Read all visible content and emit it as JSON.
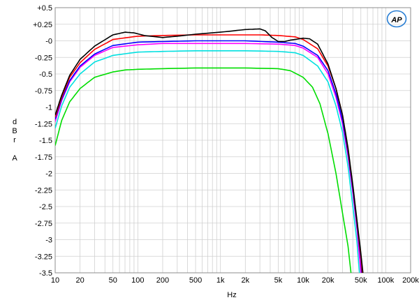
{
  "chart_data": {
    "type": "line",
    "xscale": "log",
    "xlabel": "Hz",
    "ylabel": [
      "d",
      "B",
      "r",
      "",
      "A"
    ],
    "xlim": [
      10,
      200000
    ],
    "ylim": [
      -3.5,
      0.5
    ],
    "grid": true,
    "x_ticks": [
      {
        "v": 10,
        "label": "10"
      },
      {
        "v": 20,
        "label": "20"
      },
      {
        "v": 50,
        "label": "50"
      },
      {
        "v": 100,
        "label": "100"
      },
      {
        "v": 200,
        "label": "200"
      },
      {
        "v": 500,
        "label": "500"
      },
      {
        "v": 1000,
        "label": "1k"
      },
      {
        "v": 2000,
        "label": "2k"
      },
      {
        "v": 5000,
        "label": "5k"
      },
      {
        "v": 10000,
        "label": "10k"
      },
      {
        "v": 20000,
        "label": "20k"
      },
      {
        "v": 50000,
        "label": "50k"
      },
      {
        "v": 100000,
        "label": "100k"
      },
      {
        "v": 200000,
        "label": "200k"
      }
    ],
    "y_ticks": [
      {
        "v": 0.5,
        "label": "+0.5"
      },
      {
        "v": 0.25,
        "label": "+0.25"
      },
      {
        "v": 0,
        "label": "-0"
      },
      {
        "v": -0.25,
        "label": "-0.25"
      },
      {
        "v": -0.5,
        "label": "-0.5"
      },
      {
        "v": -0.75,
        "label": "-0.75"
      },
      {
        "v": -1,
        "label": "-1"
      },
      {
        "v": -1.25,
        "label": "-1.25"
      },
      {
        "v": -1.5,
        "label": "-1.5"
      },
      {
        "v": -1.75,
        "label": "-1.75"
      },
      {
        "v": -2,
        "label": "-2"
      },
      {
        "v": -2.25,
        "label": "-2.25"
      },
      {
        "v": -2.5,
        "label": "-2.5"
      },
      {
        "v": -2.75,
        "label": "-2.75"
      },
      {
        "v": -3,
        "label": "-3"
      },
      {
        "v": -3.25,
        "label": "-3.25"
      },
      {
        "v": -3.5,
        "label": "-3.5"
      }
    ],
    "series": [
      {
        "color": "#00dd00",
        "points": [
          [
            10,
            -1.58
          ],
          [
            12,
            -1.2
          ],
          [
            15,
            -0.92
          ],
          [
            20,
            -0.72
          ],
          [
            30,
            -0.55
          ],
          [
            50,
            -0.47
          ],
          [
            70,
            -0.44
          ],
          [
            100,
            -0.43
          ],
          [
            200,
            -0.42
          ],
          [
            500,
            -0.41
          ],
          [
            1000,
            -0.41
          ],
          [
            2000,
            -0.41
          ],
          [
            5000,
            -0.42
          ],
          [
            7000,
            -0.45
          ],
          [
            10000,
            -0.55
          ],
          [
            13000,
            -0.7
          ],
          [
            16000,
            -0.95
          ],
          [
            20000,
            -1.4
          ],
          [
            25000,
            -2.0
          ],
          [
            30000,
            -2.6
          ],
          [
            35000,
            -3.1
          ],
          [
            38000,
            -3.5
          ]
        ]
      },
      {
        "color": "#00e0e0",
        "points": [
          [
            10,
            -1.32
          ],
          [
            12,
            -0.98
          ],
          [
            15,
            -0.7
          ],
          [
            20,
            -0.5
          ],
          [
            30,
            -0.32
          ],
          [
            50,
            -0.22
          ],
          [
            100,
            -0.17
          ],
          [
            200,
            -0.16
          ],
          [
            500,
            -0.15
          ],
          [
            1000,
            -0.15
          ],
          [
            2000,
            -0.15
          ],
          [
            5000,
            -0.16
          ],
          [
            8000,
            -0.18
          ],
          [
            10000,
            -0.22
          ],
          [
            15000,
            -0.38
          ],
          [
            20000,
            -0.62
          ],
          [
            25000,
            -0.98
          ],
          [
            30000,
            -1.38
          ],
          [
            35000,
            -1.9
          ],
          [
            40000,
            -2.5
          ],
          [
            45000,
            -3.05
          ],
          [
            48000,
            -3.5
          ]
        ]
      },
      {
        "color": "#ff00ff",
        "points": [
          [
            10,
            -1.22
          ],
          [
            12,
            -0.9
          ],
          [
            15,
            -0.62
          ],
          [
            20,
            -0.4
          ],
          [
            30,
            -0.22
          ],
          [
            50,
            -0.1
          ],
          [
            100,
            -0.06
          ],
          [
            200,
            -0.04
          ],
          [
            500,
            -0.04
          ],
          [
            1000,
            -0.04
          ],
          [
            2000,
            -0.04
          ],
          [
            5000,
            -0.05
          ],
          [
            8000,
            -0.07
          ],
          [
            10000,
            -0.11
          ],
          [
            15000,
            -0.25
          ],
          [
            20000,
            -0.5
          ],
          [
            25000,
            -0.85
          ],
          [
            30000,
            -1.25
          ],
          [
            35000,
            -1.75
          ],
          [
            40000,
            -2.3
          ],
          [
            45000,
            -2.85
          ],
          [
            50000,
            -3.5
          ]
        ]
      },
      {
        "color": "#0000ff",
        "points": [
          [
            10,
            -1.18
          ],
          [
            12,
            -0.88
          ],
          [
            15,
            -0.6
          ],
          [
            20,
            -0.38
          ],
          [
            30,
            -0.2
          ],
          [
            50,
            -0.07
          ],
          [
            100,
            -0.02
          ],
          [
            200,
            -0.01
          ],
          [
            500,
            0.0
          ],
          [
            1000,
            0.0
          ],
          [
            2000,
            0.0
          ],
          [
            5000,
            -0.02
          ],
          [
            8000,
            -0.04
          ],
          [
            10000,
            -0.08
          ],
          [
            15000,
            -0.22
          ],
          [
            20000,
            -0.45
          ],
          [
            25000,
            -0.8
          ],
          [
            30000,
            -1.2
          ],
          [
            35000,
            -1.7
          ],
          [
            40000,
            -2.25
          ],
          [
            45000,
            -2.8
          ],
          [
            50000,
            -3.3
          ],
          [
            51000,
            -3.5
          ]
        ]
      },
      {
        "color": "#ff0000",
        "points": [
          [
            10,
            -1.15
          ],
          [
            12,
            -0.85
          ],
          [
            15,
            -0.55
          ],
          [
            20,
            -0.33
          ],
          [
            30,
            -0.13
          ],
          [
            50,
            0.02
          ],
          [
            100,
            0.07
          ],
          [
            200,
            0.08
          ],
          [
            500,
            0.09
          ],
          [
            1000,
            0.09
          ],
          [
            2000,
            0.09
          ],
          [
            3000,
            0.09
          ],
          [
            5000,
            0.08
          ],
          [
            8000,
            0.06
          ],
          [
            10000,
            0.02
          ],
          [
            15000,
            -0.12
          ],
          [
            20000,
            -0.38
          ],
          [
            25000,
            -0.72
          ],
          [
            30000,
            -1.12
          ],
          [
            35000,
            -1.65
          ],
          [
            40000,
            -2.2
          ],
          [
            45000,
            -2.75
          ],
          [
            50000,
            -3.25
          ],
          [
            52000,
            -3.5
          ]
        ]
      },
      {
        "color": "#000000",
        "points": [
          [
            10,
            -1.12
          ],
          [
            12,
            -0.82
          ],
          [
            15,
            -0.52
          ],
          [
            20,
            -0.28
          ],
          [
            30,
            -0.08
          ],
          [
            50,
            0.09
          ],
          [
            70,
            0.13
          ],
          [
            90,
            0.12
          ],
          [
            120,
            0.08
          ],
          [
            200,
            0.05
          ],
          [
            300,
            0.07
          ],
          [
            500,
            0.1
          ],
          [
            1000,
            0.13
          ],
          [
            2000,
            0.17
          ],
          [
            3000,
            0.18
          ],
          [
            3500,
            0.15
          ],
          [
            4200,
            0.05
          ],
          [
            5000,
            -0.01
          ],
          [
            6000,
            -0.01
          ],
          [
            7000,
            0.01
          ],
          [
            9000,
            0.03
          ],
          [
            10000,
            0.04
          ],
          [
            12000,
            0.03
          ],
          [
            15000,
            -0.05
          ],
          [
            20000,
            -0.35
          ],
          [
            25000,
            -0.72
          ],
          [
            30000,
            -1.12
          ],
          [
            35000,
            -1.62
          ],
          [
            40000,
            -2.18
          ],
          [
            45000,
            -2.72
          ],
          [
            50000,
            -3.2
          ],
          [
            53000,
            -3.5
          ]
        ]
      }
    ]
  },
  "logo": {
    "text": "AP",
    "color": "#2a7fd4"
  }
}
